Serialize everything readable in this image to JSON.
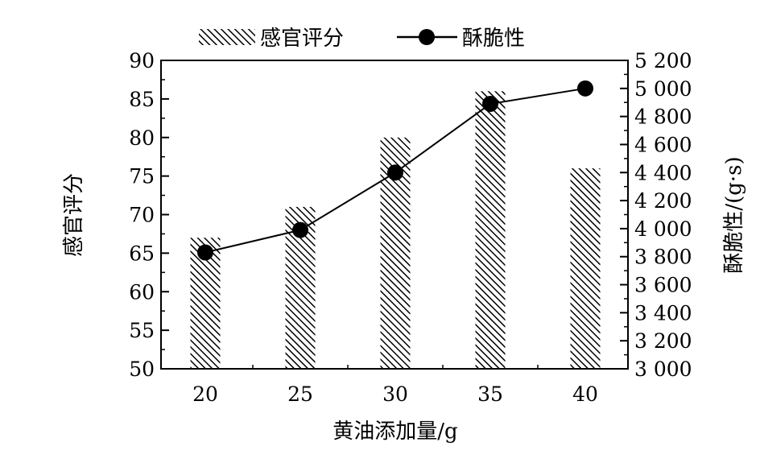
{
  "chart_data": {
    "type": "bar",
    "categories": [
      "20",
      "25",
      "30",
      "35",
      "40"
    ],
    "xlabel": "黄油添加量/g",
    "ylabel": "感官评分",
    "y2label": "酥脆性/(g·s)",
    "ylim": [
      50,
      90
    ],
    "y2lim": [
      3000,
      5200
    ],
    "yticks": [
      "50",
      "55",
      "60",
      "65",
      "70",
      "75",
      "80",
      "85",
      "90"
    ],
    "y2ticks": [
      "3 000",
      "3 200",
      "3 400",
      "3 600",
      "3 800",
      "4 000",
      "4 200",
      "4 400",
      "4 600",
      "4 800",
      "5 000",
      "5 200"
    ],
    "grid": false,
    "legend_position": "top",
    "series": [
      {
        "name": "感官评分",
        "type": "bar",
        "axis": "left",
        "pattern": "diagonal-hatch",
        "values": [
          67,
          71,
          80,
          86,
          76
        ]
      },
      {
        "name": "酥脆性",
        "type": "line",
        "axis": "right",
        "marker": "circle",
        "values": [
          3830,
          3990,
          4400,
          4890,
          5000
        ]
      }
    ]
  }
}
